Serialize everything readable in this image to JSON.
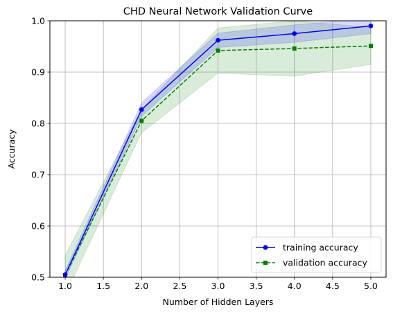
{
  "chart_data": {
    "type": "line",
    "title": "CHD Neural Network Validation Curve",
    "xlabel": "Number of Hidden Layers",
    "ylabel": "Accuracy",
    "x": [
      1,
      2,
      3,
      4,
      5
    ],
    "xlim": [
      0.8,
      5.2
    ],
    "ylim": [
      0.5,
      1.0
    ],
    "xticks": [
      "1.0",
      "1.5",
      "2.0",
      "2.5",
      "3.0",
      "3.5",
      "4.0",
      "4.5",
      "5.0"
    ],
    "yticks": [
      "0.5",
      "0.6",
      "0.7",
      "0.8",
      "0.9",
      "1.0"
    ],
    "grid": true,
    "legend_position": "lower-right",
    "series": [
      {
        "name": "training accuracy",
        "values": [
          0.505,
          0.827,
          0.962,
          0.975,
          0.99
        ],
        "lower": [
          0.497,
          0.814,
          0.948,
          0.958,
          0.975
        ],
        "upper": [
          0.513,
          0.84,
          0.976,
          0.992,
          1.005
        ],
        "color": "#0000ff",
        "marker": "circle",
        "linestyle": "solid"
      },
      {
        "name": "validation accuracy",
        "values": [
          0.504,
          0.805,
          0.942,
          0.946,
          0.951
        ],
        "lower": [
          0.465,
          0.782,
          0.898,
          0.892,
          0.915
        ],
        "upper": [
          0.543,
          0.828,
          0.986,
          1.0,
          0.987
        ],
        "color": "#008000",
        "marker": "square",
        "linestyle": "dashed"
      }
    ]
  }
}
